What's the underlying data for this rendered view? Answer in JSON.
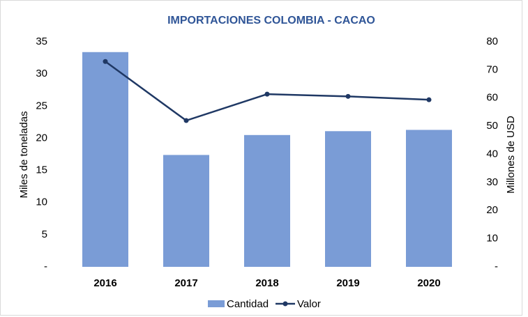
{
  "chart_data": {
    "type": "bar_line",
    "title": "IMPORTACIONES COLOMBIA  - CACAO",
    "categories": [
      "2016",
      "2017",
      "2018",
      "2019",
      "2020"
    ],
    "series": [
      {
        "name": "Cantidad",
        "color": "#7a9cd6",
        "type": "bar",
        "values": [
          33.4,
          17.4,
          20.5,
          21.1,
          21.3
        ]
      },
      {
        "name": "Valor",
        "color": "#1f3864",
        "type": "line",
        "axis": "y2",
        "values": [
          73.0,
          52.0,
          61.4,
          60.6,
          59.4
        ]
      }
    ],
    "ylabel": "Miles de toneladas",
    "y2label": "Millones de USD",
    "ylim": [
      0,
      35
    ],
    "yticks": [
      {
        "value": 0,
        "label": "-"
      },
      5,
      10,
      15,
      20,
      25,
      30,
      35
    ],
    "y2lim": [
      0,
      80
    ],
    "y2ticks": [
      {
        "value": 0,
        "label": "-"
      },
      10,
      20,
      30,
      40,
      50,
      60,
      70,
      80
    ],
    "legend": "bottom"
  }
}
